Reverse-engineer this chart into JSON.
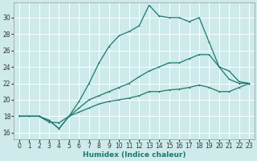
{
  "xlabel": "Humidex (Indice chaleur)",
  "bg_color": "#ceeaea",
  "grid_color": "#ffffff",
  "line_color": "#1a7a6e",
  "xlim": [
    -0.5,
    23.5
  ],
  "ylim": [
    15.2,
    31.8
  ],
  "xticks": [
    0,
    1,
    2,
    3,
    4,
    5,
    6,
    7,
    8,
    9,
    10,
    11,
    12,
    13,
    14,
    15,
    16,
    17,
    18,
    19,
    20,
    21,
    22,
    23
  ],
  "yticks": [
    16,
    18,
    20,
    22,
    24,
    26,
    28,
    30
  ],
  "curve1_x": [
    0,
    1,
    2,
    3,
    4,
    5,
    6,
    7,
    8,
    9,
    10,
    11,
    12,
    13,
    14,
    15,
    16,
    17,
    18,
    19,
    20,
    21,
    22,
    23
  ],
  "curve1_y": [
    18,
    18,
    18,
    17.3,
    17.2,
    18.0,
    19.8,
    22.0,
    24.5,
    26.5,
    27.8,
    28.3,
    29.0,
    31.5,
    30.2,
    30.0,
    30.0,
    29.5,
    30.0,
    27.0,
    24.0,
    22.5,
    22.0,
    22.0
  ],
  "curve2_x": [
    0,
    1,
    2,
    3,
    4,
    5,
    6,
    7,
    8,
    9,
    10,
    11,
    12,
    13,
    14,
    15,
    16,
    17,
    18,
    19,
    20,
    21,
    22,
    23
  ],
  "curve2_y": [
    18,
    18,
    18,
    17.5,
    16.5,
    18.0,
    19.0,
    20.0,
    20.5,
    21.0,
    21.5,
    22.0,
    22.8,
    23.5,
    24.0,
    24.5,
    24.5,
    25.0,
    25.5,
    25.5,
    24.0,
    23.5,
    22.2,
    22.0
  ],
  "curve3_x": [
    0,
    1,
    2,
    3,
    4,
    5,
    6,
    7,
    8,
    9,
    10,
    11,
    12,
    13,
    14,
    15,
    16,
    17,
    18,
    19,
    20,
    21,
    22,
    23
  ],
  "curve3_y": [
    18,
    18,
    18,
    17.5,
    16.5,
    18.0,
    18.5,
    19.0,
    19.5,
    19.8,
    20.0,
    20.2,
    20.5,
    21.0,
    21.0,
    21.2,
    21.3,
    21.5,
    21.8,
    21.5,
    21.0,
    21.0,
    21.5,
    22.0
  ]
}
